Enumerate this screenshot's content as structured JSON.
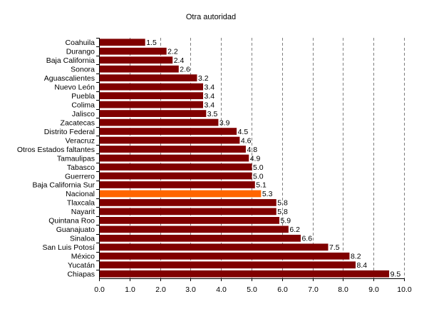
{
  "chart_data": {
    "type": "bar",
    "orientation": "horizontal",
    "title": "Otra autoridad",
    "xlabel": "",
    "ylabel": "",
    "xlim": [
      0,
      10
    ],
    "x_ticks": [
      "0.0",
      "1.0",
      "2.0",
      "3.0",
      "4.0",
      "5.0",
      "6.0",
      "7.0",
      "8.0",
      "9.0",
      "10.0"
    ],
    "grid": "vertical dashed",
    "bar_color": "#800000",
    "highlight_color": "#ff6600",
    "highlight_category": "Nacional",
    "categories": [
      "Coahuila",
      "Durango",
      "Baja California",
      "Sonora",
      "Aguascalientes",
      "Nuevo León",
      "Puebla",
      "Colima",
      "Jalisco",
      "Zacatecas",
      "Distrito Federal",
      "Veracruz",
      "Otros Estados faltantes",
      "Tamaulipas",
      "Tabasco",
      "Guerrero",
      "Baja California Sur",
      "Nacional",
      "Tlaxcala",
      "Nayarit",
      "Quintana Roo",
      "Guanajuato",
      "Sinaloa",
      "San Luis Potosí",
      "México",
      "Yucatán",
      "Chiapas"
    ],
    "values": [
      1.5,
      2.2,
      2.4,
      2.6,
      3.2,
      3.4,
      3.4,
      3.4,
      3.5,
      3.9,
      4.5,
      4.6,
      4.8,
      4.9,
      5.0,
      5.0,
      5.1,
      5.3,
      5.8,
      5.8,
      5.9,
      6.2,
      6.6,
      7.5,
      8.2,
      8.4,
      9.5
    ],
    "value_labels": [
      "1.5",
      "2.2",
      "2.4",
      "2.6",
      "3.2",
      "3.4",
      "3.4",
      "3.4",
      "3.5",
      "3.9",
      "4.5",
      "4.6",
      "4.8",
      "4.9",
      "5.0",
      "5.0",
      "5.1",
      "5.3",
      "5.8",
      "5.8",
      "5.9",
      "6.2",
      "6.6",
      "7.5",
      "8.2",
      "8.4",
      "9.5"
    ]
  }
}
